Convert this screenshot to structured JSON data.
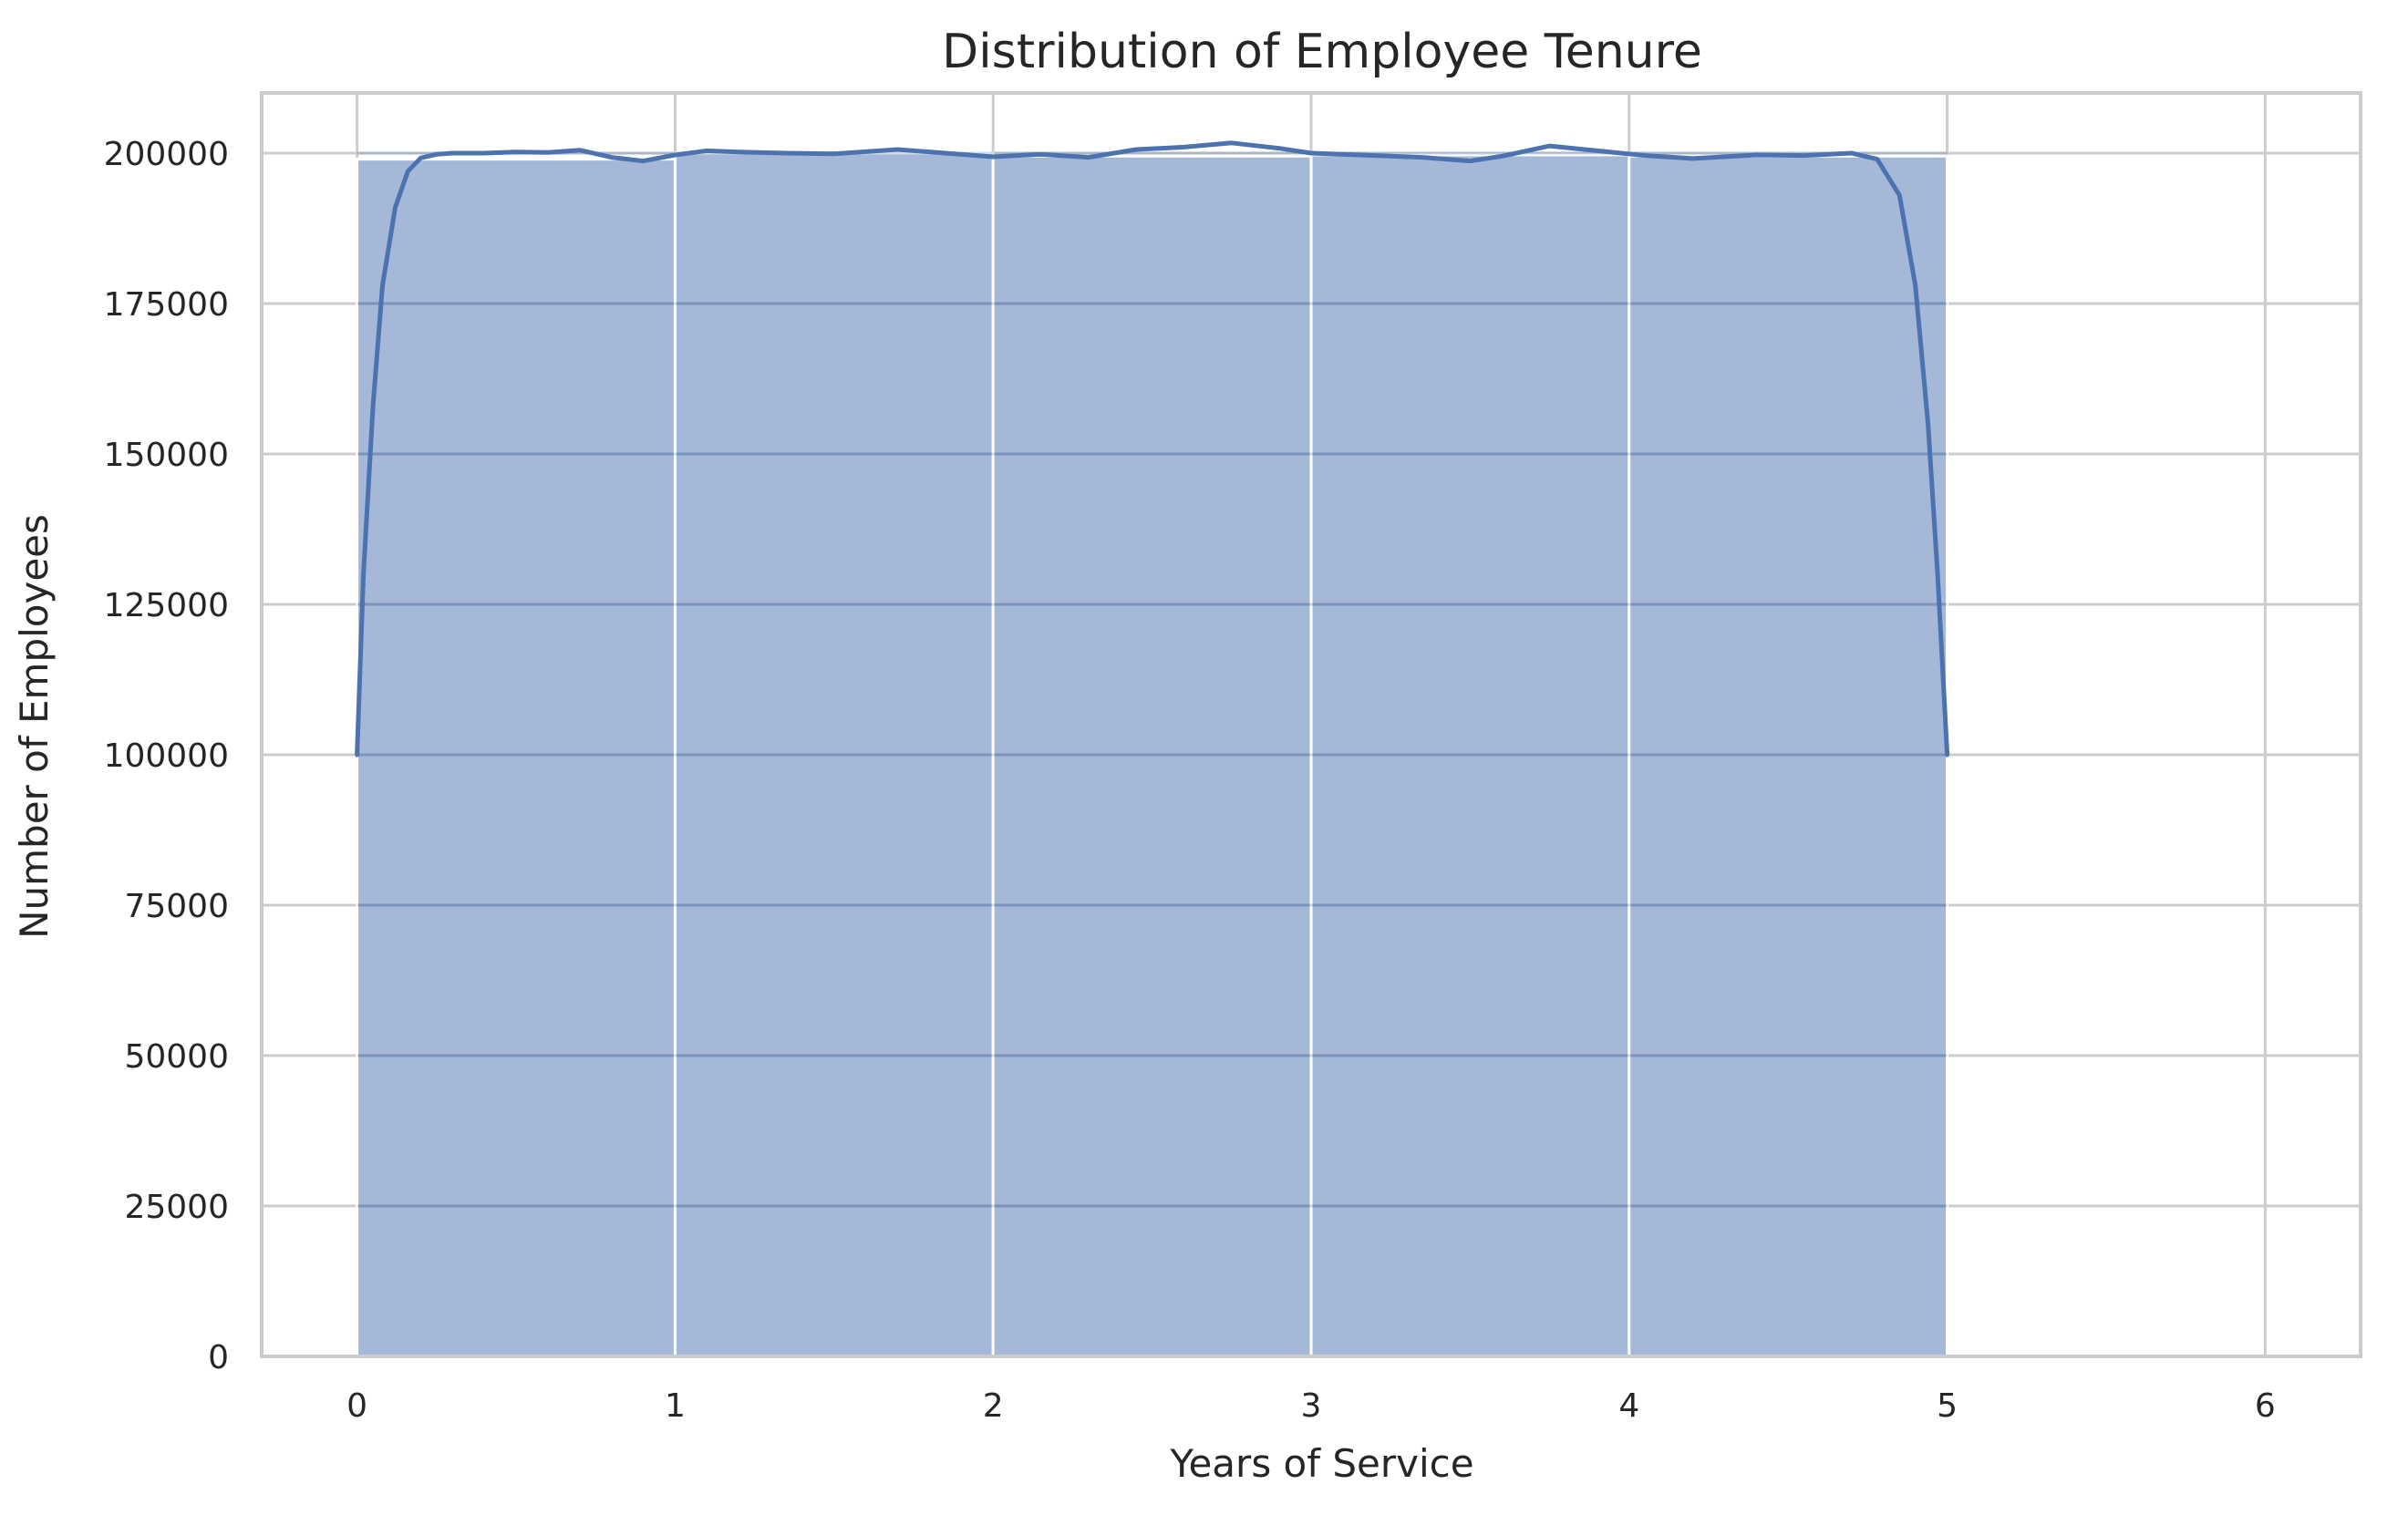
{
  "chart_data": {
    "type": "bar",
    "subtype": "histogram-with-kde",
    "title": "Distribution of Employee Tenure",
    "xlabel": "Years of Service",
    "ylabel": "Number of Employees",
    "xlim": [
      -0.3,
      6.3
    ],
    "ylim": [
      0,
      210000
    ],
    "x_ticks": [
      0,
      1,
      2,
      3,
      4,
      5,
      6
    ],
    "y_ticks": [
      0,
      25000,
      50000,
      75000,
      100000,
      125000,
      150000,
      175000,
      200000
    ],
    "grid": true,
    "bins": [
      {
        "x0": 0,
        "x1": 1,
        "value": 199000
      },
      {
        "x0": 1,
        "x1": 2,
        "value": 200000
      },
      {
        "x0": 2,
        "x1": 3,
        "value": 199500
      },
      {
        "x0": 3,
        "x1": 4,
        "value": 199700
      },
      {
        "x0": 4,
        "x1": 5,
        "value": 199500
      }
    ],
    "kde": {
      "name": "",
      "x": [
        0.0,
        0.02,
        0.05,
        0.08,
        0.12,
        0.16,
        0.2,
        0.25,
        0.3,
        0.4,
        0.5,
        0.6,
        0.7,
        0.8,
        0.9,
        1.0,
        1.1,
        1.2,
        1.35,
        1.5,
        1.7,
        1.85,
        2.0,
        2.15,
        2.3,
        2.45,
        2.6,
        2.75,
        2.9,
        3.0,
        3.2,
        3.35,
        3.5,
        3.6,
        3.75,
        3.9,
        4.05,
        4.2,
        4.4,
        4.55,
        4.7,
        4.78,
        4.85,
        4.9,
        4.94,
        4.97,
        5.0
      ],
      "y": [
        100000,
        130000,
        158000,
        178000,
        191000,
        197000,
        199200,
        199800,
        200000,
        200000,
        200200,
        200100,
        200500,
        199300,
        198700,
        199700,
        200400,
        200200,
        200000,
        199900,
        200600,
        200000,
        199400,
        199800,
        199300,
        200600,
        201000,
        201700,
        200800,
        200000,
        199600,
        199300,
        198700,
        199500,
        201200,
        200400,
        199600,
        199100,
        199700,
        199600,
        200000,
        199000,
        193000,
        178000,
        155000,
        130000,
        100000
      ]
    },
    "colors": {
      "bar_fill": "#4c72b0",
      "bar_fill_opacity": 0.5,
      "kde_line": "#4c72b0",
      "grid": "#cccccc",
      "axes_edge": "#cccccc"
    }
  }
}
